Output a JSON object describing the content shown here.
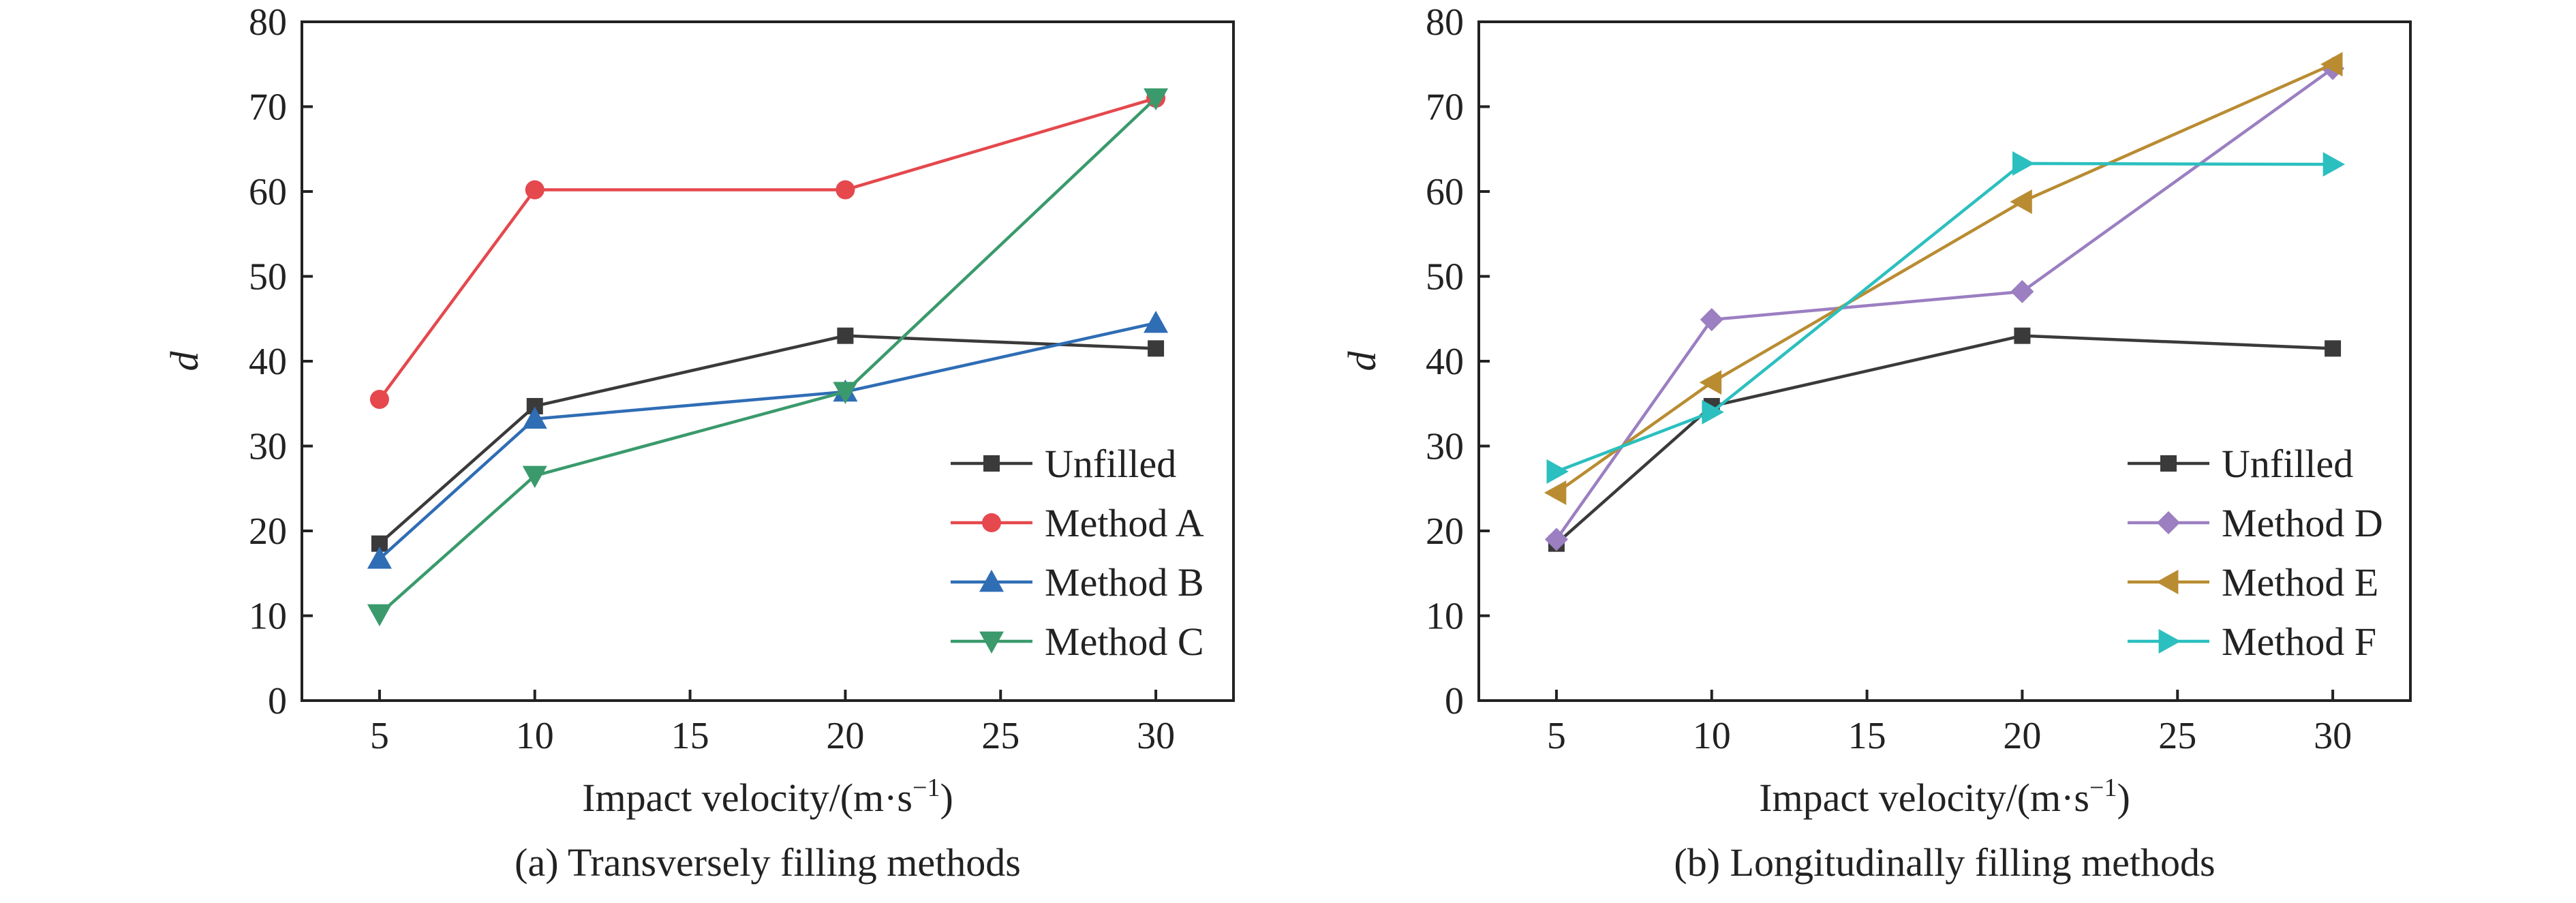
{
  "chart_data": [
    {
      "type": "line",
      "caption": "(a) Transversely filling methods",
      "xlabel": "Impact velocity/(m·s",
      "xlabel_sup": "−1",
      "xlabel_end": ")",
      "ylabel": "d",
      "xlim": [
        2.5,
        32.5
      ],
      "ylim": [
        0,
        80
      ],
      "xticks": [
        5,
        10,
        15,
        20,
        25,
        30
      ],
      "yticks": [
        0,
        10,
        20,
        30,
        40,
        50,
        60,
        70,
        80
      ],
      "legend_position": "bottom-right",
      "series": [
        {
          "name": "Unfilled",
          "color": "#3a3a3a",
          "marker": "square",
          "x": [
            5,
            10,
            20,
            30
          ],
          "y": [
            18.5,
            34.7,
            43,
            41.5
          ]
        },
        {
          "name": "Method A",
          "color": "#e5484d",
          "marker": "circle",
          "x": [
            5,
            10,
            20,
            30
          ],
          "y": [
            35.5,
            60.2,
            60.2,
            71
          ]
        },
        {
          "name": "Method B",
          "color": "#2f6db5",
          "marker": "triangle-up",
          "x": [
            5,
            10,
            20,
            30
          ],
          "y": [
            16.7,
            33.2,
            36.4,
            44.5
          ]
        },
        {
          "name": "Method C",
          "color": "#3a9a6c",
          "marker": "triangle-down",
          "x": [
            5,
            10,
            20,
            30
          ],
          "y": [
            10.2,
            26.5,
            36.4,
            71
          ]
        }
      ]
    },
    {
      "type": "line",
      "caption": "(b) Longitudinally filling methods",
      "xlabel": "Impact velocity/(m·s",
      "xlabel_sup": "−1",
      "xlabel_end": ")",
      "ylabel": "d",
      "xlim": [
        2.5,
        32.5
      ],
      "ylim": [
        0,
        80
      ],
      "xticks": [
        5,
        10,
        15,
        20,
        25,
        30
      ],
      "yticks": [
        0,
        10,
        20,
        30,
        40,
        50,
        60,
        70,
        80
      ],
      "legend_position": "bottom-right",
      "series": [
        {
          "name": "Unfilled",
          "color": "#3a3a3a",
          "marker": "square",
          "x": [
            5,
            10,
            20,
            30
          ],
          "y": [
            18.5,
            34.7,
            43,
            41.5
          ]
        },
        {
          "name": "Method D",
          "color": "#9b7fc1",
          "marker": "diamond",
          "x": [
            5,
            10,
            20,
            30
          ],
          "y": [
            19,
            44.9,
            48.2,
            74.5
          ]
        },
        {
          "name": "Method E",
          "color": "#b98c32",
          "marker": "triangle-left",
          "x": [
            5,
            10,
            20,
            30
          ],
          "y": [
            24.5,
            37.5,
            58.8,
            75
          ]
        },
        {
          "name": "Method F",
          "color": "#2bbfbf",
          "marker": "triangle-right",
          "x": [
            5,
            10,
            20,
            30
          ],
          "y": [
            27,
            34,
            63.3,
            63.2
          ]
        }
      ]
    }
  ]
}
